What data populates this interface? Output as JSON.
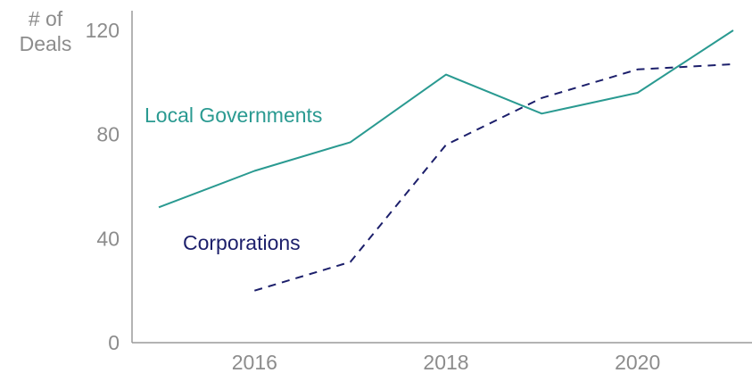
{
  "chart_data": {
    "type": "line",
    "title": "",
    "xlabel": "",
    "ylabel": [
      "# of",
      "Deals"
    ],
    "xlim": [
      2014.85,
      2021.15
    ],
    "ylim": [
      0,
      125
    ],
    "x_ticks": [
      2016,
      2018,
      2020
    ],
    "y_ticks": [
      0,
      40,
      80,
      120
    ],
    "grid": false,
    "legend": "direct-labels",
    "series": [
      {
        "name": "Local Governments",
        "color": "#2a9a91",
        "style": "solid",
        "x": [
          2015,
          2016,
          2017,
          2018,
          2019,
          2020,
          2021
        ],
        "values": [
          52,
          66,
          77,
          103,
          88,
          96,
          120
        ]
      },
      {
        "name": "Corporations",
        "color": "#1c1f6b",
        "style": "dashed",
        "x": [
          2016,
          2017,
          2018,
          2019,
          2020,
          2021
        ],
        "values": [
          20,
          31,
          76,
          94,
          105,
          107
        ]
      }
    ]
  }
}
